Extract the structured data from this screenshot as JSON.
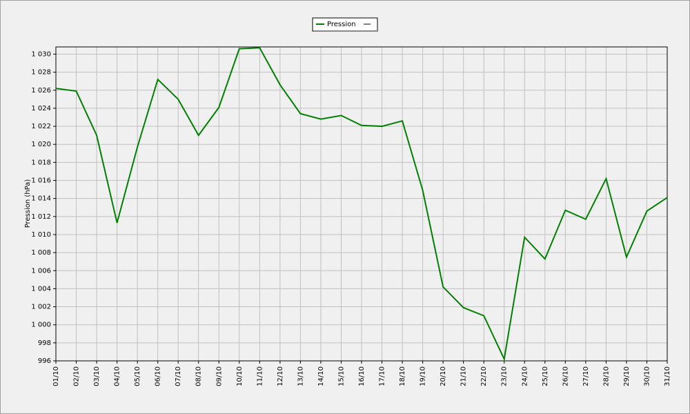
{
  "chart_data": {
    "type": "line",
    "y_label": "Pression (hPa)",
    "categories": [
      "01/10",
      "02/10",
      "03/10",
      "04/10",
      "05/10",
      "06/10",
      "07/10",
      "08/10",
      "09/10",
      "10/10",
      "11/10",
      "12/10",
      "13/10",
      "14/10",
      "15/10",
      "16/10",
      "17/10",
      "18/10",
      "19/10",
      "20/10",
      "21/10",
      "22/10",
      "23/10",
      "24/10",
      "25/10",
      "26/10",
      "27/10",
      "28/10",
      "29/10",
      "30/10",
      "31/10"
    ],
    "series": [
      {
        "name": "Pression",
        "color": "#008000",
        "values": [
          1026.2,
          1025.9,
          1021.0,
          1011.3,
          1019.7,
          1027.2,
          1025.0,
          1021.0,
          1024.1,
          1030.6,
          1030.7,
          1026.6,
          1023.4,
          1022.8,
          1023.2,
          1022.1,
          1022.0,
          1022.6,
          1014.9,
          1004.2,
          1001.9,
          1001.0,
          996.2,
          1009.7,
          1007.3,
          1012.7,
          1011.7,
          1016.2,
          1007.5,
          1012.6,
          1014.1
        ]
      }
    ],
    "ylim": [
      996,
      1030.8
    ],
    "yticks": [
      996,
      998,
      {
        "value": 1000,
        "label": "1 000"
      },
      {
        "value": 1002,
        "label": "1 002"
      },
      {
        "value": 1004,
        "label": "1 004"
      },
      {
        "value": 1006,
        "label": "1 006"
      },
      {
        "value": 1008,
        "label": "1 008"
      },
      {
        "value": 1010,
        "label": "1 010"
      },
      {
        "value": 1012,
        "label": "1 012"
      },
      {
        "value": 1014,
        "label": "1 014"
      },
      {
        "value": 1016,
        "label": "1 016"
      },
      {
        "value": 1018,
        "label": "1 018"
      },
      {
        "value": 1020,
        "label": "1 020"
      },
      {
        "value": 1022,
        "label": "1 022"
      },
      {
        "value": 1024,
        "label": "1 024"
      },
      {
        "value": 1026,
        "label": "1 026"
      },
      {
        "value": 1028,
        "label": "1 028"
      },
      {
        "value": 1030,
        "label": "1 030"
      }
    ],
    "grid": true
  }
}
